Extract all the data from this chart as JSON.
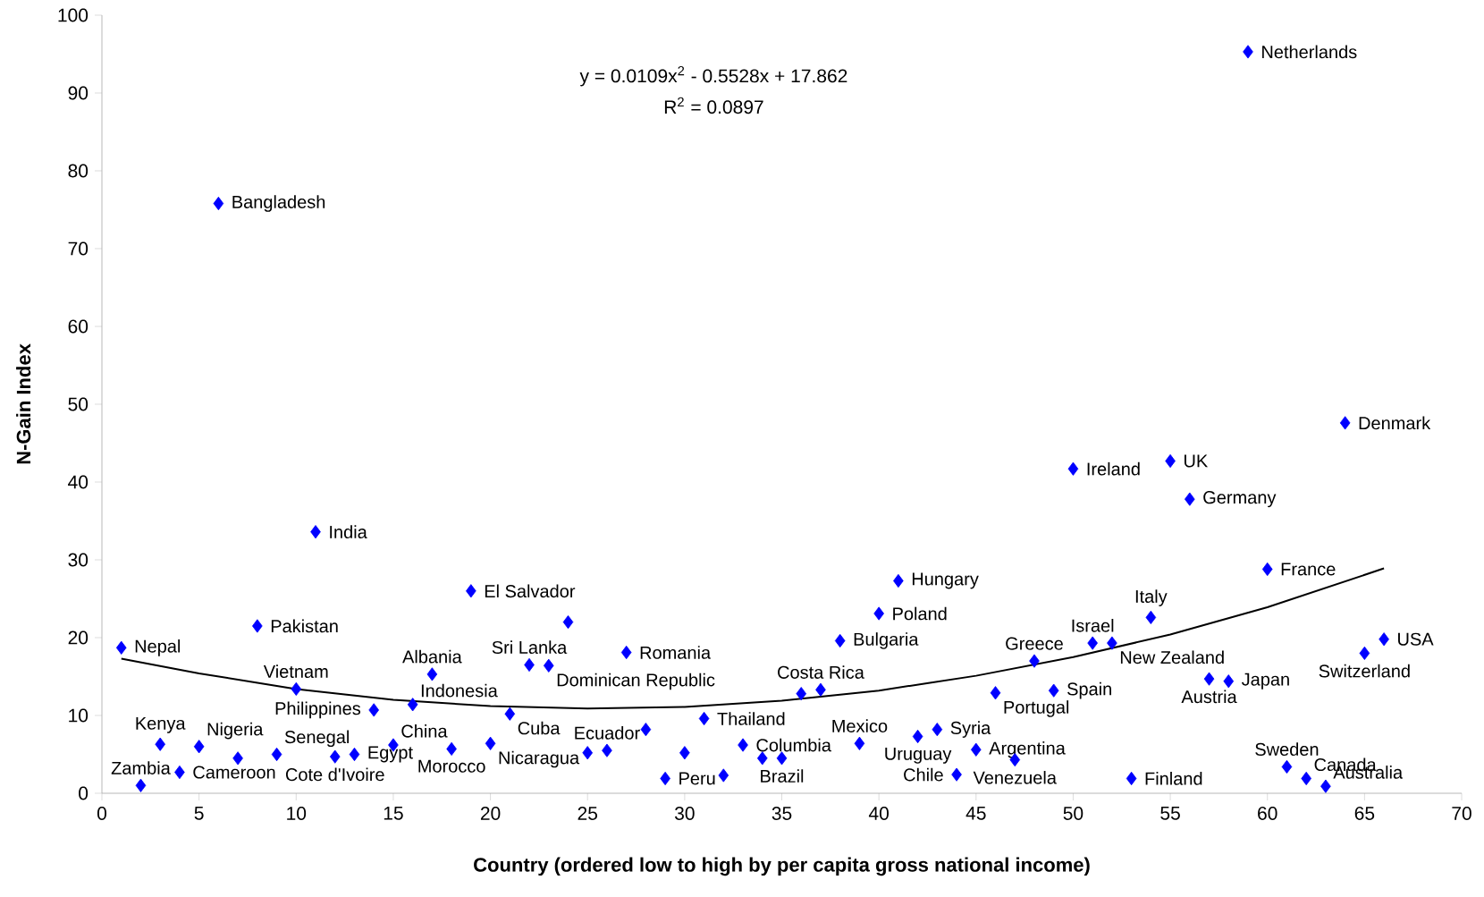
{
  "chart_data": {
    "type": "scatter",
    "xlabel": "Country (ordered low to high by per capita gross national income)",
    "ylabel": "N-Gain Index",
    "xlim": [
      0,
      70
    ],
    "ylim": [
      0,
      100
    ],
    "xticks": [
      0,
      5,
      10,
      15,
      20,
      25,
      30,
      35,
      40,
      45,
      50,
      55,
      60,
      65,
      70
    ],
    "yticks": [
      0,
      10,
      20,
      30,
      40,
      50,
      60,
      70,
      80,
      90,
      100
    ],
    "series": [
      {
        "color": "#0000ff",
        "marker": "diamond",
        "x": [
          1,
          2,
          3,
          4,
          5,
          6,
          7,
          8,
          9,
          10,
          11,
          12,
          13,
          14,
          15,
          16,
          17,
          18,
          19,
          20,
          21,
          22,
          23,
          24,
          25,
          26,
          27,
          28,
          29,
          30,
          31,
          32,
          33,
          34,
          35,
          36,
          37,
          38,
          39,
          40,
          41,
          42,
          43,
          44,
          45,
          46,
          47,
          48,
          49,
          50,
          51,
          52,
          53,
          54,
          55,
          56,
          57,
          58,
          59,
          60,
          61,
          62,
          63,
          64,
          65,
          66
        ],
        "values": [
          18.7,
          1.0,
          6.3,
          2.7,
          6.0,
          75.8,
          4.5,
          21.5,
          5.0,
          13.4,
          33.6,
          4.7,
          5.0,
          10.7,
          6.2,
          11.4,
          15.3,
          5.7,
          26.0,
          6.4,
          10.2,
          16.5,
          16.4,
          22.0,
          5.2,
          5.5,
          18.1,
          8.2,
          1.9,
          5.2,
          9.6,
          2.3,
          6.2,
          4.5,
          4.5,
          12.8,
          13.3,
          19.6,
          6.4,
          23.1,
          27.3,
          7.3,
          8.2,
          2.4,
          5.6,
          12.9,
          4.3,
          17.0,
          13.2,
          41.7,
          19.3,
          19.3,
          1.9,
          22.6,
          42.7,
          37.8,
          14.7,
          14.4,
          95.3,
          28.8,
          3.4,
          1.9,
          0.9,
          47.6,
          18.0,
          19.8
        ]
      },
      {
        "type": "line",
        "color": "#000000",
        "x": [
          1,
          5,
          10,
          15,
          20,
          25,
          30,
          35,
          40,
          45,
          50,
          55,
          60,
          66
        ],
        "values": [
          17.3,
          15.4,
          13.4,
          12.0,
          11.2,
          10.9,
          11.1,
          11.9,
          13.2,
          15.1,
          17.5,
          20.4,
          23.9,
          28.9
        ]
      }
    ],
    "annotations": [
      "y = 0.0109x$^{2}$ - 0.5528x + 17.862",
      "R$^{2}$ = 0.0897",
      {
        "text": "Nepal",
        "x": 1,
        "y": 18.7
      },
      {
        "text": "Zambia",
        "x": 2,
        "y": 1.0
      },
      {
        "text": "Kenya",
        "x": 3,
        "y": 6.3
      },
      {
        "text": "Cameroon",
        "x": 4,
        "y": 2.7
      },
      {
        "text": "Nigeria",
        "x": 5,
        "y": 6.0
      },
      {
        "text": "Bangladesh",
        "x": 6,
        "y": 75.8
      },
      {
        "text": "Pakistan",
        "x": 8,
        "y": 21.5
      },
      {
        "text": "Senegal",
        "x": 9,
        "y": 5.0
      },
      {
        "text": "Vietnam",
        "x": 10,
        "y": 13.4
      },
      {
        "text": "India",
        "x": 11,
        "y": 33.6
      },
      {
        "text": "Cote d'Ivoire",
        "x": 12,
        "y": 4.7
      },
      {
        "text": "Egypt",
        "x": 13,
        "y": 5.0
      },
      {
        "text": "Philippines",
        "x": 14,
        "y": 10.7
      },
      {
        "text": "China",
        "x": 15,
        "y": 6.2
      },
      {
        "text": "Indonesia",
        "x": 16,
        "y": 11.4
      },
      {
        "text": "Albania",
        "x": 17,
        "y": 15.3
      },
      {
        "text": "Morocco",
        "x": 18,
        "y": 5.7
      },
      {
        "text": "El Salvador",
        "x": 19,
        "y": 26.0
      },
      {
        "text": "Nicaragua",
        "x": 20,
        "y": 6.4
      },
      {
        "text": "Cuba",
        "x": 21,
        "y": 10.2
      },
      {
        "text": "Sri Lanka",
        "x": 22,
        "y": 16.5
      },
      {
        "text": "Dominican Republic",
        "x": 23,
        "y": 16.4
      },
      {
        "text": "Ecuador",
        "x": 26,
        "y": 5.5
      },
      {
        "text": "Romania",
        "x": 27,
        "y": 18.1
      },
      {
        "text": "Peru",
        "x": 29,
        "y": 1.9
      },
      {
        "text": "Thailand",
        "x": 31,
        "y": 9.6
      },
      {
        "text": "Columbia",
        "x": 33,
        "y": 6.2
      },
      {
        "text": "Brazil",
        "x": 35,
        "y": 4.5
      },
      {
        "text": "Costa Rica",
        "x": 37,
        "y": 13.3
      },
      {
        "text": "Bulgaria",
        "x": 38,
        "y": 19.6
      },
      {
        "text": "Mexico",
        "x": 39,
        "y": 6.4
      },
      {
        "text": "Poland",
        "x": 40,
        "y": 23.1
      },
      {
        "text": "Hungary",
        "x": 41,
        "y": 27.3
      },
      {
        "text": "Uruguay",
        "x": 42,
        "y": 7.3
      },
      {
        "text": "Syria",
        "x": 43,
        "y": 8.2
      },
      {
        "text": "Chile",
        "x": 44,
        "y": 2.4
      },
      {
        "text": "Argentina",
        "x": 45,
        "y": 5.6
      },
      {
        "text": "Portugal",
        "x": 46,
        "y": 12.9
      },
      {
        "text": "Venezuela",
        "x": 47,
        "y": 4.3
      },
      {
        "text": "Greece",
        "x": 48,
        "y": 17.0
      },
      {
        "text": "Spain",
        "x": 49,
        "y": 13.2
      },
      {
        "text": "Ireland",
        "x": 50,
        "y": 41.7
      },
      {
        "text": "Israel",
        "x": 51,
        "y": 19.3
      },
      {
        "text": "New Zealand",
        "x": 52,
        "y": 19.3
      },
      {
        "text": "Finland",
        "x": 53,
        "y": 1.9
      },
      {
        "text": "Italy",
        "x": 54,
        "y": 22.6
      },
      {
        "text": "UK",
        "x": 55,
        "y": 42.7
      },
      {
        "text": "Germany",
        "x": 56,
        "y": 37.8
      },
      {
        "text": "Austria",
        "x": 57,
        "y": 14.7
      },
      {
        "text": "Japan",
        "x": 58,
        "y": 14.4
      },
      {
        "text": "Netherlands",
        "x": 59,
        "y": 95.3
      },
      {
        "text": "France",
        "x": 60,
        "y": 28.8
      },
      {
        "text": "Sweden",
        "x": 61,
        "y": 3.4
      },
      {
        "text": "Canada",
        "x": 62,
        "y": 1.9
      },
      {
        "text": "Australia",
        "x": 63,
        "y": 0.9
      },
      {
        "text": "Denmark",
        "x": 64,
        "y": 47.6
      },
      {
        "text": "Switzerland",
        "x": 65,
        "y": 18.0
      },
      {
        "text": "USA",
        "x": 66,
        "y": 19.8
      }
    ]
  }
}
